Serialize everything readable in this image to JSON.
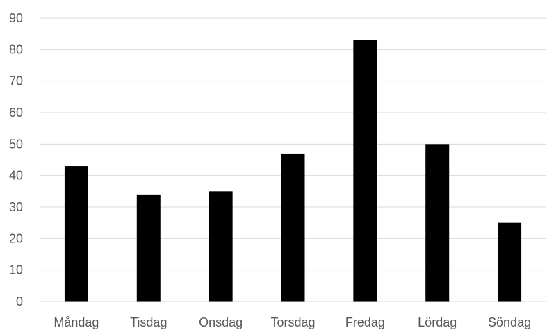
{
  "chart_data": {
    "type": "bar",
    "categories": [
      "Måndag",
      "Tisdag",
      "Onsdag",
      "Torsdag",
      "Fredag",
      "Lördag",
      "Söndag"
    ],
    "values": [
      43,
      34,
      35,
      47,
      83,
      50,
      25
    ],
    "title": "",
    "xlabel": "",
    "ylabel": "",
    "ylim": [
      0,
      90
    ],
    "yticks": [
      0,
      10,
      20,
      30,
      40,
      50,
      60,
      70,
      80,
      90
    ],
    "grid": "horizontal",
    "legend": "none",
    "colors": {
      "bar": "#000000",
      "grid": "#d9d9d9",
      "axis": "#d9d9d9",
      "text": "#595959"
    }
  }
}
